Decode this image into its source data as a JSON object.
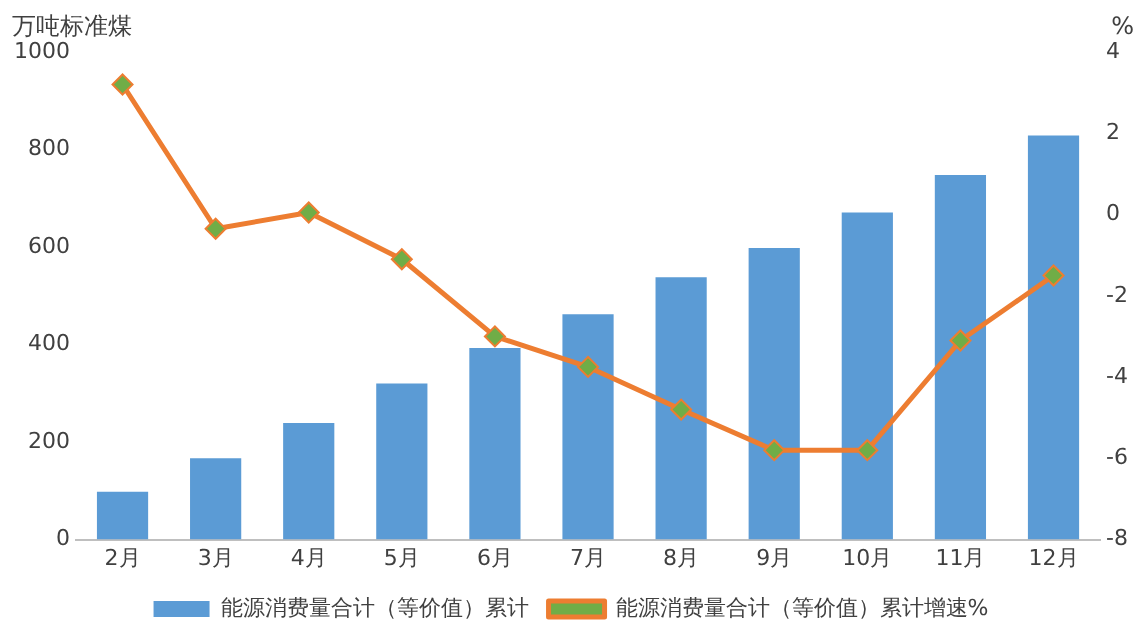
{
  "chart_data": {
    "type": "bar",
    "ylabel": "万吨标准煤",
    "y2label": "%",
    "categories": [
      "2月",
      "3月",
      "4月",
      "5月",
      "6月",
      "7月",
      "8月",
      "9月",
      "10月",
      "11月",
      "12月"
    ],
    "series": [
      {
        "name": "能源消费量合计（等价值）累计",
        "color": "#5b9bd5",
        "values": [
          98,
          167,
          239,
          320,
          393,
          462,
          538,
          598,
          671,
          748,
          829
        ]
      },
      {
        "name": "能源消费量合计（等价值）累计增速%",
        "type": "line",
        "axis": "y2",
        "color": "#ed7d31",
        "values": [
          3.2,
          -0.35,
          0.05,
          -1.1,
          -3.0,
          -3.75,
          -4.8,
          -5.8,
          -5.8,
          -3.1,
          -1.5
        ]
      }
    ],
    "ylim": [
      0,
      1000
    ],
    "yticks": [
      0,
      200,
      400,
      600,
      800,
      1000
    ],
    "y2lim": [
      -8,
      4
    ],
    "y2ticks": [
      -8,
      -6,
      -4,
      -2,
      0,
      2,
      4
    ],
    "grid": false,
    "legend": "bottom",
    "marker": "diamond",
    "line_style": "solid"
  }
}
